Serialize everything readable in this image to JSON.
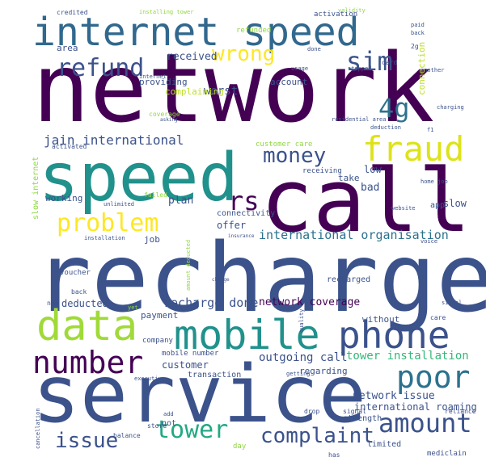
{
  "palette": {
    "dark_purple": "#440154",
    "indigo": "#3b528b",
    "blue": "#31688e",
    "teal": "#21918c",
    "green": "#35b779",
    "lime": "#90d743",
    "yellow": "#fde725",
    "background": "#ffffff"
  },
  "words": [
    {
      "id": "network",
      "text": "network",
      "color": "#440154"
    },
    {
      "id": "recharge",
      "text": "recharge",
      "color": "#3b528b"
    },
    {
      "id": "service",
      "text": "service",
      "color": "#3b528b"
    },
    {
      "id": "call",
      "text": "call",
      "color": "#440154"
    },
    {
      "id": "speed",
      "text": "speed",
      "color": "#21918c"
    },
    {
      "id": "internet-speed",
      "text": "internet speed",
      "color": "#31688e"
    },
    {
      "id": "mobile",
      "text": "mobile",
      "color": "#21918c"
    },
    {
      "id": "phone",
      "text": "phone",
      "color": "#3b528b"
    },
    {
      "id": "data",
      "text": "data",
      "color": "#a0da39"
    },
    {
      "id": "number",
      "text": "number",
      "color": "#440154"
    },
    {
      "id": "poor",
      "text": "poor",
      "color": "#2c728e"
    },
    {
      "id": "fraud",
      "text": "fraud",
      "color": "#dde318"
    },
    {
      "id": "tower",
      "text": "tower",
      "color": "#22a884"
    },
    {
      "id": "amount",
      "text": "amount",
      "color": "#3b528b"
    },
    {
      "id": "problem",
      "text": "problem",
      "color": "#fde725"
    },
    {
      "id": "money",
      "text": "money",
      "color": "#3b528b"
    },
    {
      "id": "sim",
      "text": "sim",
      "color": "#3b528b"
    },
    {
      "id": "refund",
      "text": "refund",
      "color": "#3b528b"
    },
    {
      "id": "wrong",
      "text": "wrong",
      "color": "#fde725"
    },
    {
      "id": "4g",
      "text": "4g",
      "color": "#2c728e"
    },
    {
      "id": "issue",
      "text": "issue",
      "color": "#3b528b"
    },
    {
      "id": "complaint",
      "text": "complaint",
      "color": "#3b528b"
    },
    {
      "id": "rs",
      "text": "rs",
      "color": "#440154"
    },
    {
      "id": "jain-international",
      "text": "jain international",
      "color": "#3b528b"
    },
    {
      "id": "international-organisation",
      "text": "international organisation",
      "color": "#2c728e"
    },
    {
      "id": "recharge-done",
      "text": "recharge done",
      "color": "#3b528b"
    },
    {
      "id": "network-coverage",
      "text": "network coverage",
      "color": "#440154"
    },
    {
      "id": "network-issue",
      "text": "network issue",
      "color": "#3b528b"
    },
    {
      "id": "tower-installation",
      "text": "tower installation",
      "color": "#35b779"
    },
    {
      "id": "outgoing-call",
      "text": "outgoing call",
      "color": "#3b528b"
    },
    {
      "id": "international-roaming",
      "text": "international roaming",
      "color": "#3b528b"
    },
    {
      "id": "received",
      "text": "received",
      "color": "#3b528b"
    },
    {
      "id": "worst",
      "text": "worst",
      "color": "#3b528b"
    },
    {
      "id": "account",
      "text": "account",
      "color": "#3b528b"
    },
    {
      "id": "complaining",
      "text": "complaining",
      "color": "#bddf26"
    },
    {
      "id": "providing",
      "text": "providing",
      "color": "#3b528b"
    },
    {
      "id": "area",
      "text": "area",
      "color": "#3b528b"
    },
    {
      "id": "credited",
      "text": "credited",
      "color": "#3b528b"
    },
    {
      "id": "installing-tower",
      "text": "installing tower",
      "color": "#90d743"
    },
    {
      "id": "activation",
      "text": "activation",
      "color": "#3b528b"
    },
    {
      "id": "refunded",
      "text": "refunded",
      "color": "#90d743"
    },
    {
      "id": "validity",
      "text": "validity",
      "color": "#90d743"
    },
    {
      "id": "connection",
      "text": "connection",
      "color": "#bddf26"
    },
    {
      "id": "paid",
      "text": "paid",
      "color": "#3b528b"
    },
    {
      "id": "back",
      "text": "back",
      "color": "#3b528b"
    },
    {
      "id": "2g",
      "text": "2g",
      "color": "#3b528b"
    },
    {
      "id": "card",
      "text": "card",
      "color": "#3b528b"
    },
    {
      "id": "stopped",
      "text": "stopped",
      "color": "#3b528b"
    },
    {
      "id": "usage",
      "text": "usage",
      "color": "#3b528b"
    },
    {
      "id": "done",
      "text": "done",
      "color": "#3b528b"
    },
    {
      "id": "internet",
      "text": "internet",
      "color": "#3b528b"
    },
    {
      "id": "another",
      "text": "another",
      "color": "#3b528b"
    },
    {
      "id": "charging",
      "text": "charging",
      "color": "#3b528b"
    },
    {
      "id": "coverage",
      "text": "coverage",
      "color": "#90d743"
    },
    {
      "id": "asking",
      "text": "asking",
      "color": "#3b528b"
    },
    {
      "id": "residential-area",
      "text": "residential area",
      "color": "#3b528b"
    },
    {
      "id": "deduction",
      "text": "deduction",
      "color": "#3b528b"
    },
    {
      "id": "f1",
      "text": "f1",
      "color": "#3b528b"
    },
    {
      "id": "activated",
      "text": "activated",
      "color": "#3b528b"
    },
    {
      "id": "customer-care",
      "text": "customer care",
      "color": "#90d743"
    },
    {
      "id": "receiving",
      "text": "receiving",
      "color": "#3b528b"
    },
    {
      "id": "take",
      "text": "take",
      "color": "#3b528b"
    },
    {
      "id": "low",
      "text": "low",
      "color": "#3b528b"
    },
    {
      "id": "bad",
      "text": "bad",
      "color": "#3b528b"
    },
    {
      "id": "home-job",
      "text": "home job",
      "color": "#3b528b"
    },
    {
      "id": "app",
      "text": "app",
      "color": "#3b528b"
    },
    {
      "id": "slow",
      "text": "slow",
      "color": "#3b528b"
    },
    {
      "id": "slow-internet",
      "text": "slow internet",
      "color": "#90d743"
    },
    {
      "id": "working",
      "text": "working",
      "color": "#3b528b"
    },
    {
      "id": "plan",
      "text": "plan",
      "color": "#3b528b"
    },
    {
      "id": "failed",
      "text": "failed",
      "color": "#90d743"
    },
    {
      "id": "unlimited",
      "text": "unlimited",
      "color": "#3b528b"
    },
    {
      "id": "connectivity",
      "text": "connectivity",
      "color": "#3b528b"
    },
    {
      "id": "website",
      "text": "website",
      "color": "#3b528b"
    },
    {
      "id": "offer",
      "text": "offer",
      "color": "#3b528b"
    },
    {
      "id": "installation",
      "text": "installation",
      "color": "#3b528b"
    },
    {
      "id": "job",
      "text": "job",
      "color": "#3b528b"
    },
    {
      "id": "insurance",
      "text": "insurance",
      "color": "#3b528b"
    },
    {
      "id": "voice",
      "text": "voice",
      "color": "#3b528b"
    },
    {
      "id": "amount-deducted",
      "text": "amount deducted",
      "color": "#90d743"
    },
    {
      "id": "charge",
      "text": "charge",
      "color": "#3b528b"
    },
    {
      "id": "recharged",
      "text": "recharged",
      "color": "#3b528b"
    },
    {
      "id": "voucher",
      "text": "voucher",
      "color": "#3b528b"
    },
    {
      "id": "deducted",
      "text": "deducted",
      "color": "#3b528b"
    },
    {
      "id": "payment",
      "text": "payment",
      "color": "#3b528b"
    },
    {
      "id": "without",
      "text": "without",
      "color": "#3b528b"
    },
    {
      "id": "care",
      "text": "care",
      "color": "#3b528b"
    },
    {
      "id": "signal",
      "text": "signal",
      "color": "#3b528b"
    },
    {
      "id": "company",
      "text": "company",
      "color": "#3b528b"
    },
    {
      "id": "customer",
      "text": "customer",
      "color": "#3b528b"
    },
    {
      "id": "mobile-number",
      "text": "mobile number",
      "color": "#3b528b"
    },
    {
      "id": "regarding",
      "text": "regarding",
      "color": "#3b528b"
    },
    {
      "id": "transaction",
      "text": "transaction",
      "color": "#3b528b"
    },
    {
      "id": "executive",
      "text": "executive",
      "color": "#3b528b"
    },
    {
      "id": "getting",
      "text": "getting",
      "color": "#3b528b"
    },
    {
      "id": "store",
      "text": "store",
      "color": "#3b528b"
    },
    {
      "id": "add",
      "text": "add",
      "color": "#3b528b"
    },
    {
      "id": "not",
      "text": "not",
      "color": "#3b528b"
    },
    {
      "id": "strength",
      "text": "strength",
      "color": "#3b528b"
    },
    {
      "id": "signal-2",
      "text": "signal",
      "color": "#3b528b"
    },
    {
      "id": "reliance",
      "text": "reliance",
      "color": "#3b528b"
    },
    {
      "id": "drop",
      "text": "drop",
      "color": "#3b528b"
    },
    {
      "id": "balance",
      "text": "balance",
      "color": "#3b528b"
    },
    {
      "id": "day",
      "text": "day",
      "color": "#90d743"
    },
    {
      "id": "has",
      "text": "has",
      "color": "#3b528b"
    },
    {
      "id": "limited",
      "text": "limited",
      "color": "#3b528b"
    },
    {
      "id": "mediclain",
      "text": "mediclain",
      "color": "#3b528b"
    },
    {
      "id": "cancellation",
      "text": "cancellation",
      "color": "#3b528b"
    },
    {
      "id": "yet",
      "text": "yet",
      "color": "#90d743"
    },
    {
      "id": "back-2",
      "text": "back",
      "color": "#3b528b"
    },
    {
      "id": "non",
      "text": "non",
      "color": "#3b528b"
    },
    {
      "id": "quality",
      "text": "quality",
      "color": "#3b528b"
    }
  ]
}
